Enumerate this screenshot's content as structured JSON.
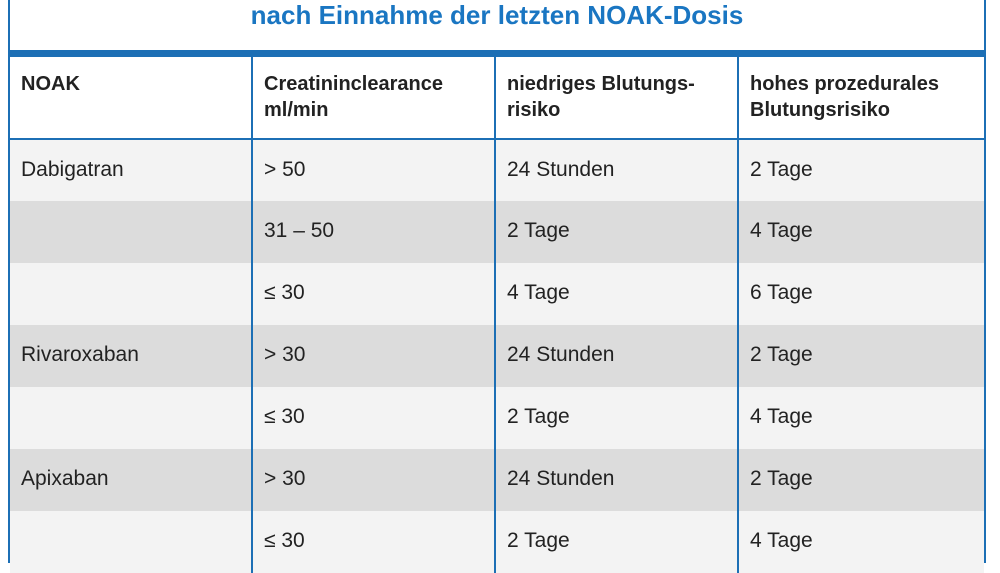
{
  "title": "nach Einnahme der letzten NOAK-Dosis",
  "table": {
    "headers": [
      "NOAK",
      "Creatininclearance ml/min",
      "niedriges Blutungs-risiko",
      "hohes prozedurales Blutungsrisiko"
    ],
    "rows": [
      [
        "Dabigatran",
        "> 50",
        "24 Stunden",
        "2 Tage"
      ],
      [
        "",
        "31 – 50",
        "2 Tage",
        "4 Tage"
      ],
      [
        "",
        "≤ 30",
        "4 Tage",
        "6 Tage"
      ],
      [
        "Rivaroxaban",
        "> 30",
        "24 Stunden",
        "2 Tage"
      ],
      [
        "",
        "≤ 30",
        "2 Tage",
        "4 Tage"
      ],
      [
        "Apixaban",
        "> 30",
        "24 Stunden",
        "2 Tage"
      ],
      [
        "",
        "≤ 30",
        "2 Tage",
        "4 Tage"
      ]
    ]
  },
  "colors": {
    "accent": "#1c6fb5",
    "title": "#1a76c2",
    "row_light": "#f3f3f3",
    "row_dark": "#dcdcdc"
  }
}
